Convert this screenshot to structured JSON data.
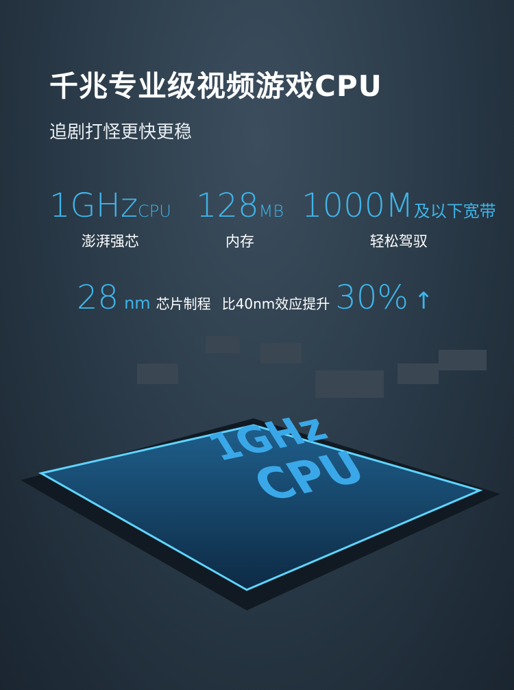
{
  "title": "千兆专业级视频游戏CPU",
  "subtitle": "追剧打怪更快更稳",
  "stats": [
    {
      "value": "1GHz",
      "unit": "CPU",
      "label": "澎湃强芯"
    },
    {
      "value": "128",
      "unit": "MB",
      "label": "内存"
    },
    {
      "value": "1000M",
      "unit": "及以下宽带",
      "label": "轻松驾驭"
    }
  ],
  "process": {
    "value": "28",
    "unit": "nm",
    "text1": "芯片制程",
    "text2": "比40nm效应提升",
    "gain": "30%",
    "arrow_icon": "arrow-up-icon"
  },
  "chip": {
    "line1": "1GHz",
    "line2": "CPU"
  },
  "colors": {
    "accent": "#3fb4e8"
  }
}
